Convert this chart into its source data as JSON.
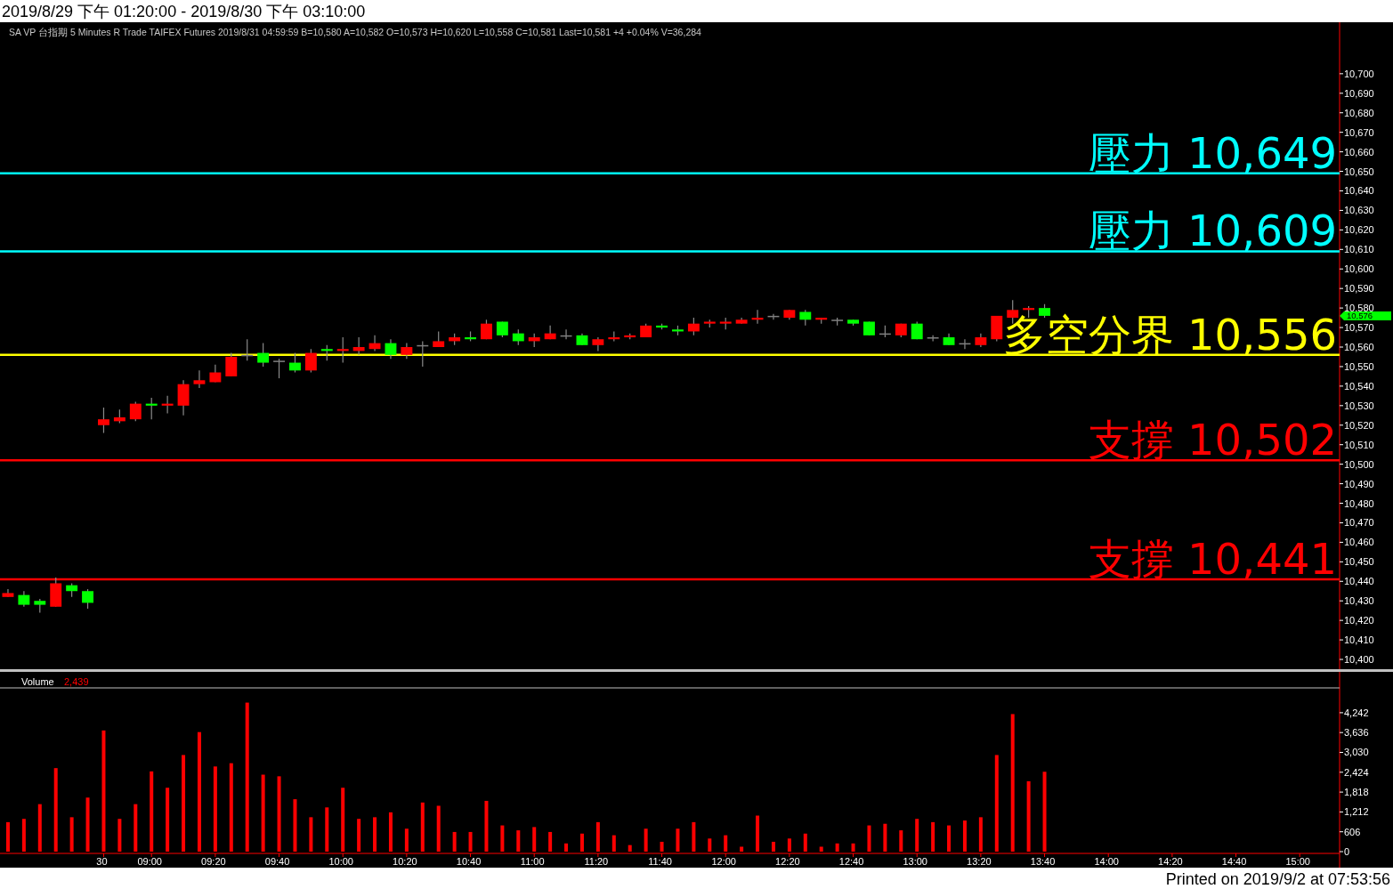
{
  "chart_data": [
    {
      "type": "candlestick",
      "title": "2019/8/29 下午 01:20:00 - 2019/8/30 下午 03:10:00",
      "subtitle": "SA  VP  台指期  5 Minutes  R  Trade  TAIFEX  Futures  2019/8/31  04:59:59  B=10,580  A=10,582  O=10,573  H=10,620  L=10,558  C=10,581  Last=10,581  +4  +0.04%  V=36,284",
      "ohlc": [
        [
          10432,
          10436,
          10432,
          10434
        ],
        [
          10433,
          10435,
          10427,
          10428
        ],
        [
          10430,
          10431,
          10424,
          10428
        ],
        [
          10427,
          10442,
          10427,
          10439
        ],
        [
          10438,
          10439,
          10432,
          10435
        ],
        [
          10435,
          10436,
          10426,
          10429
        ],
        [
          10520,
          10529,
          10516,
          10523
        ],
        [
          10522,
          10528,
          10521,
          10524
        ],
        [
          10523,
          10532,
          10522,
          10531
        ],
        [
          10531,
          10534,
          10523,
          10530
        ],
        [
          10530,
          10535,
          10526,
          10531
        ],
        [
          10530,
          10543,
          10525,
          10541
        ],
        [
          10541,
          10548,
          10539,
          10543
        ],
        [
          10542,
          10551,
          10542,
          10547
        ],
        [
          10545,
          10557,
          10545,
          10555
        ],
        [
          10556,
          10564,
          10553,
          10556
        ],
        [
          10557,
          10562,
          10550,
          10552
        ],
        [
          10553,
          10554,
          10544,
          10553
        ],
        [
          10552,
          10557,
          10547,
          10548
        ],
        [
          10548,
          10559,
          10547,
          10557
        ],
        [
          10559,
          10561,
          10553,
          10558
        ],
        [
          10558,
          10565,
          10552,
          10559
        ],
        [
          10558,
          10565,
          10556,
          10560
        ],
        [
          10559,
          10566,
          10558,
          10562
        ],
        [
          10562,
          10564,
          10554,
          10556
        ],
        [
          10556,
          10562,
          10554,
          10560
        ],
        [
          10561,
          10563,
          10550,
          10561
        ],
        [
          10560,
          10568,
          10560,
          10563
        ],
        [
          10563,
          10567,
          10561,
          10565
        ],
        [
          10565,
          10568,
          10563,
          10564
        ],
        [
          10564,
          10574,
          10564,
          10572
        ],
        [
          10573,
          10573,
          10565,
          10566
        ],
        [
          10567,
          10569,
          10561,
          10563
        ],
        [
          10563,
          10567,
          10560,
          10565
        ],
        [
          10564,
          10571,
          10564,
          10567
        ],
        [
          10566,
          10569,
          10564,
          10566
        ],
        [
          10566,
          10567,
          10561,
          10561
        ],
        [
          10561,
          10565,
          10558,
          10564
        ],
        [
          10564,
          10568,
          10563,
          10565
        ],
        [
          10565,
          10567,
          10564,
          10566
        ],
        [
          10565,
          10572,
          10565,
          10571
        ],
        [
          10571,
          10572,
          10569,
          10570
        ],
        [
          10569,
          10571,
          10566,
          10568
        ],
        [
          10568,
          10575,
          10566,
          10572
        ],
        [
          10572,
          10574,
          10570,
          10573
        ],
        [
          10572,
          10575,
          10569,
          10573
        ],
        [
          10572,
          10575,
          10572,
          10574
        ],
        [
          10574,
          10579,
          10572,
          10575
        ],
        [
          10576,
          10577,
          10574,
          10576
        ],
        [
          10575,
          10579,
          10574,
          10579
        ],
        [
          10578,
          10579,
          10571,
          10574
        ],
        [
          10574,
          10575,
          10572,
          10575
        ],
        [
          10574,
          10575,
          10571,
          10574
        ],
        [
          10574,
          10574,
          10571,
          10572
        ],
        [
          10573,
          10573,
          10566,
          10566
        ],
        [
          10567,
          10571,
          10565,
          10567
        ],
        [
          10566,
          10572,
          10565,
          10572
        ],
        [
          10572,
          10573,
          10564,
          10564
        ],
        [
          10565,
          10566,
          10563,
          10565
        ],
        [
          10565,
          10567,
          10561,
          10561
        ],
        [
          10562,
          10564,
          10559,
          10562
        ],
        [
          10561,
          10567,
          10560,
          10565
        ],
        [
          10564,
          10576,
          10563,
          10576
        ],
        [
          10575,
          10584,
          10572,
          10579
        ],
        [
          10579,
          10581,
          10575,
          10580
        ],
        [
          10580,
          10582,
          10575,
          10576
        ],
        null,
        null,
        null,
        null,
        null,
        null,
        null,
        null,
        null,
        null,
        null,
        null,
        null,
        null,
        null,
        null,
        null,
        null
      ],
      "colors": [
        "#ff0000",
        "#00ff00",
        "#00ff00",
        "#ff0000",
        "#00ff00",
        "#00ff00",
        "#ff0000",
        "#ff0000",
        "#ff0000",
        "#00ff00",
        "#ff0000",
        "#ff0000",
        "#ff0000",
        "#ff0000",
        "#ff0000",
        "#808080",
        "#00ff00",
        "#808080",
        "#00ff00",
        "#ff0000",
        "#00ff00",
        "#ff0000",
        "#ff0000",
        "#ff0000",
        "#00ff00",
        "#ff0000",
        "#808080",
        "#ff0000",
        "#ff0000",
        "#00ff00",
        "#ff0000",
        "#00ff00",
        "#00ff00",
        "#ff0000",
        "#ff0000",
        "#808080",
        "#00ff00",
        "#ff0000",
        "#ff0000",
        "#ff0000",
        "#ff0000",
        "#00ff00",
        "#00ff00",
        "#ff0000",
        "#ff0000",
        "#ff0000",
        "#ff0000",
        "#ff0000",
        "#808080",
        "#ff0000",
        "#00ff00",
        "#ff0000",
        "#808080",
        "#00ff00",
        "#00ff00",
        "#808080",
        "#ff0000",
        "#00ff00",
        "#808080",
        "#00ff00",
        "#808080",
        "#ff0000",
        "#ff0000",
        "#ff0000",
        "#ff0000",
        "#00ff00",
        null,
        null,
        null,
        null,
        null,
        null,
        null,
        null,
        null,
        null,
        null,
        null,
        null,
        null,
        null,
        null,
        null,
        null
      ],
      "ylim": [
        10395,
        10725
      ],
      "yticks": [
        {
          "value": 10400,
          "label": "10,400"
        },
        {
          "value": 10410,
          "label": "10,410"
        },
        {
          "value": 10420,
          "label": "10,420"
        },
        {
          "value": 10430,
          "label": "10,430"
        },
        {
          "value": 10440,
          "label": "10,440"
        },
        {
          "value": 10450,
          "label": "10,450"
        },
        {
          "value": 10460,
          "label": "10,460"
        },
        {
          "value": 10470,
          "label": "10,470"
        },
        {
          "value": 10480,
          "label": "10,480"
        },
        {
          "value": 10490,
          "label": "10,490"
        },
        {
          "value": 10500,
          "label": "10,500"
        },
        {
          "value": 10510,
          "label": "10,510"
        },
        {
          "value": 10520,
          "label": "10,520"
        },
        {
          "value": 10530,
          "label": "10,530"
        },
        {
          "value": 10540,
          "label": "10,540"
        },
        {
          "value": 10550,
          "label": "10,550"
        },
        {
          "value": 10560,
          "label": "10,560"
        },
        {
          "value": 10570,
          "label": "10,570"
        },
        {
          "value": 10580,
          "label": "10,580"
        },
        {
          "value": 10590,
          "label": "10,590"
        },
        {
          "value": 10600,
          "label": "10,600"
        },
        {
          "value": 10610,
          "label": "10,610"
        },
        {
          "value": 10620,
          "label": "10,620"
        },
        {
          "value": 10630,
          "label": "10,630"
        },
        {
          "value": 10640,
          "label": "10,640"
        },
        {
          "value": 10650,
          "label": "10,650"
        },
        {
          "value": 10660,
          "label": "10,660"
        },
        {
          "value": 10670,
          "label": "10,670"
        },
        {
          "value": 10680,
          "label": "10,680"
        },
        {
          "value": 10690,
          "label": "10,690"
        },
        {
          "value": 10700,
          "label": "10,700"
        }
      ],
      "ref_lines": [
        {
          "axis": "y",
          "value": 10649,
          "label": "壓力 10,649",
          "color": "#00ffff"
        },
        {
          "axis": "y",
          "value": 10609,
          "label": "壓力 10,609",
          "color": "#00ffff"
        },
        {
          "axis": "y",
          "value": 10556,
          "label": "多空分界 10,556",
          "color": "#ffff00"
        },
        {
          "axis": "y",
          "value": 10502,
          "label": "支撐 10,502",
          "color": "#ff0000"
        },
        {
          "axis": "y",
          "value": 10441,
          "label": "支撐 10,441",
          "color": "#ff0000"
        }
      ],
      "annotations": [
        "10,576",
        "Printed on 2019/9/2 at 07:53:56"
      ],
      "tick_labels": "y"
    },
    {
      "type": "bar",
      "title": "Volume",
      "color": "#ff0000",
      "categories": [
        null,
        null,
        null,
        null,
        null,
        null,
        "30",
        null,
        null,
        "09:00",
        null,
        null,
        null,
        "09:20",
        null,
        null,
        null,
        "09:40",
        null,
        null,
        null,
        "10:00",
        null,
        null,
        null,
        "10:20",
        null,
        null,
        null,
        "10:40",
        null,
        null,
        null,
        "11:00",
        null,
        null,
        null,
        "11:20",
        null,
        null,
        null,
        "11:40",
        null,
        null,
        null,
        "12:00",
        null,
        null,
        null,
        "12:20",
        null,
        null,
        null,
        "12:40",
        null,
        null,
        null,
        "13:00",
        null,
        null,
        null,
        "13:20",
        null,
        null,
        null,
        "13:40",
        null,
        null,
        null,
        "14:00",
        null,
        null,
        null,
        "14:20",
        null,
        null,
        null,
        "14:40",
        null,
        null,
        null,
        "15:00",
        null,
        null
      ],
      "values": [
        900,
        1000,
        1450,
        2550,
        1050,
        1650,
        3700,
        1000,
        1450,
        2450,
        1950,
        2950,
        3650,
        2600,
        2700,
        4550,
        2350,
        2300,
        1600,
        1050,
        1350,
        1950,
        1000,
        1050,
        1200,
        700,
        1500,
        1400,
        600,
        600,
        1550,
        800,
        650,
        750,
        600,
        250,
        550,
        900,
        500,
        200,
        700,
        300,
        700,
        900,
        400,
        500,
        150,
        1100,
        300,
        400,
        550,
        150,
        250,
        250,
        800,
        850,
        650,
        1000,
        900,
        800,
        950,
        1050,
        2950,
        4200,
        2150,
        2439,
        null,
        null,
        null,
        null,
        null,
        null,
        null,
        null,
        null,
        null,
        null,
        null,
        null,
        null,
        null,
        null,
        null,
        null
      ],
      "ylim": [
        0,
        5000
      ],
      "yticks": [
        0,
        606,
        {
          "value": 1212,
          "label": "1,212"
        },
        {
          "value": 1818,
          "label": "1,818"
        },
        {
          "value": 2424,
          "label": "2,424"
        },
        {
          "value": 3030,
          "label": "3,030"
        },
        {
          "value": 3636,
          "label": "3,636"
        },
        {
          "value": 4242,
          "label": "4,242"
        }
      ],
      "annotations": [
        "2,439"
      ]
    }
  ]
}
